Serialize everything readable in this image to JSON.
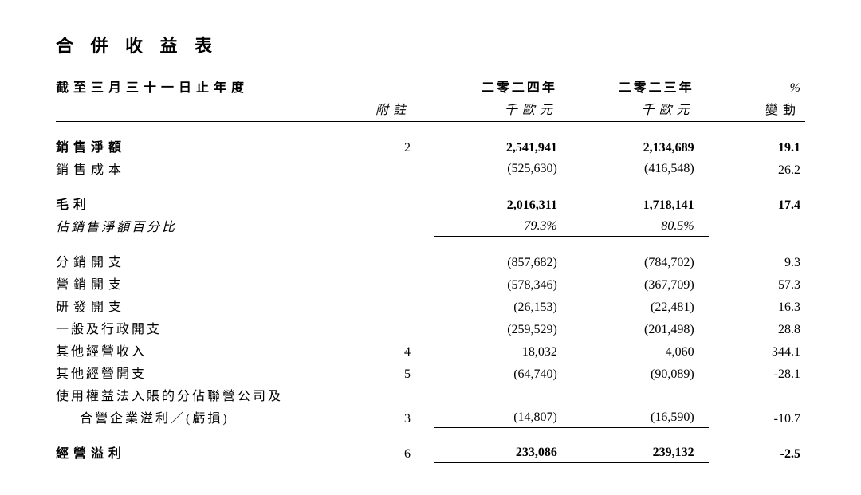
{
  "title": "合 併 收 益 表",
  "header": {
    "period_label": "截至三月三十一日止年度",
    "note_label": "附註",
    "year1": "二零二四年",
    "year2": "二零二三年",
    "unit": "千歐元",
    "pct_sym": "%",
    "pct_label": "變動"
  },
  "rows": {
    "net_sales": {
      "label": "銷售淨額",
      "note": "2",
      "y1": "2,541,941",
      "y2": "2,134,689",
      "pct": "19.1"
    },
    "cogs": {
      "label": "銷售成本",
      "y1": "(525,630)",
      "y2": "(416,548)",
      "pct": "26.2"
    },
    "gross_profit": {
      "label": "毛利",
      "y1": "2,016,311",
      "y2": "1,718,141",
      "pct": "17.4"
    },
    "gp_pct": {
      "label": "佔銷售淨額百分比",
      "y1": "79.3%",
      "y2": "80.5%"
    },
    "dist_exp": {
      "label": "分銷開支",
      "y1": "(857,682)",
      "y2": "(784,702)",
      "pct": "9.3"
    },
    "mkt_exp": {
      "label": "營銷開支",
      "y1": "(578,346)",
      "y2": "(367,709)",
      "pct": "57.3"
    },
    "rd_exp": {
      "label": "研發開支",
      "y1": "(26,153)",
      "y2": "(22,481)",
      "pct": "16.3"
    },
    "ga_exp": {
      "label": "一般及行政開支",
      "y1": "(259,529)",
      "y2": "(201,498)",
      "pct": "28.8"
    },
    "other_inc": {
      "label": "其他經營收入",
      "note": "4",
      "y1": "18,032",
      "y2": "4,060",
      "pct": "344.1"
    },
    "other_exp": {
      "label": "其他經營開支",
      "note": "5",
      "y1": "(64,740)",
      "y2": "(90,089)",
      "pct": "-28.1"
    },
    "equity_line1": {
      "label": "使用權益法入賬的分佔聯營公司及"
    },
    "equity_line2": {
      "label": "合營企業溢利╱(虧損)",
      "note": "3",
      "y1": "(14,807)",
      "y2": "(16,590)",
      "pct": "-10.7"
    },
    "op_profit": {
      "label": "經營溢利",
      "note": "6",
      "y1": "233,086",
      "y2": "239,132",
      "pct": "-2.5"
    }
  }
}
